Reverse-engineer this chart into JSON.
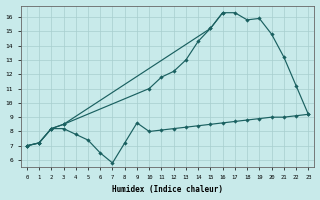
{
  "bg_color": "#c8eaea",
  "grid_color": "#a8cece",
  "line_color": "#1a6060",
  "xlabel": "Humidex (Indice chaleur)",
  "xlim": [
    -0.5,
    23.5
  ],
  "ylim": [
    5.5,
    16.8
  ],
  "xticks": [
    0,
    1,
    2,
    3,
    4,
    5,
    6,
    7,
    8,
    9,
    10,
    11,
    12,
    13,
    14,
    15,
    16,
    17,
    18,
    19,
    20,
    21,
    22,
    23
  ],
  "yticks": [
    6,
    7,
    8,
    9,
    10,
    11,
    12,
    13,
    14,
    15,
    16
  ],
  "curve1_x": [
    0,
    1,
    2,
    3,
    4,
    5,
    6,
    7,
    8,
    9,
    10,
    11,
    12,
    13,
    14,
    15,
    16,
    17,
    18,
    19,
    20,
    21,
    22,
    23
  ],
  "curve1_y": [
    7.0,
    7.2,
    8.2,
    8.2,
    7.8,
    7.4,
    6.5,
    5.8,
    7.2,
    8.6,
    8.0,
    8.1,
    8.2,
    8.3,
    8.4,
    8.5,
    8.6,
    8.7,
    8.8,
    8.9,
    9.0,
    9.0,
    9.1,
    9.2
  ],
  "curve2_x": [
    0,
    1,
    2,
    3,
    10,
    11,
    12,
    13,
    14,
    15,
    16,
    17,
    18,
    19,
    20,
    21,
    22,
    23
  ],
  "curve2_y": [
    7.0,
    7.2,
    8.2,
    8.5,
    11.0,
    11.8,
    12.2,
    13.0,
    14.3,
    15.2,
    16.3,
    16.3,
    15.8,
    15.9,
    14.8,
    13.2,
    11.2,
    9.2
  ],
  "curve3_x": [
    0,
    1,
    2,
    3,
    15,
    16
  ],
  "curve3_y": [
    7.0,
    7.2,
    8.2,
    8.5,
    15.2,
    16.3
  ]
}
